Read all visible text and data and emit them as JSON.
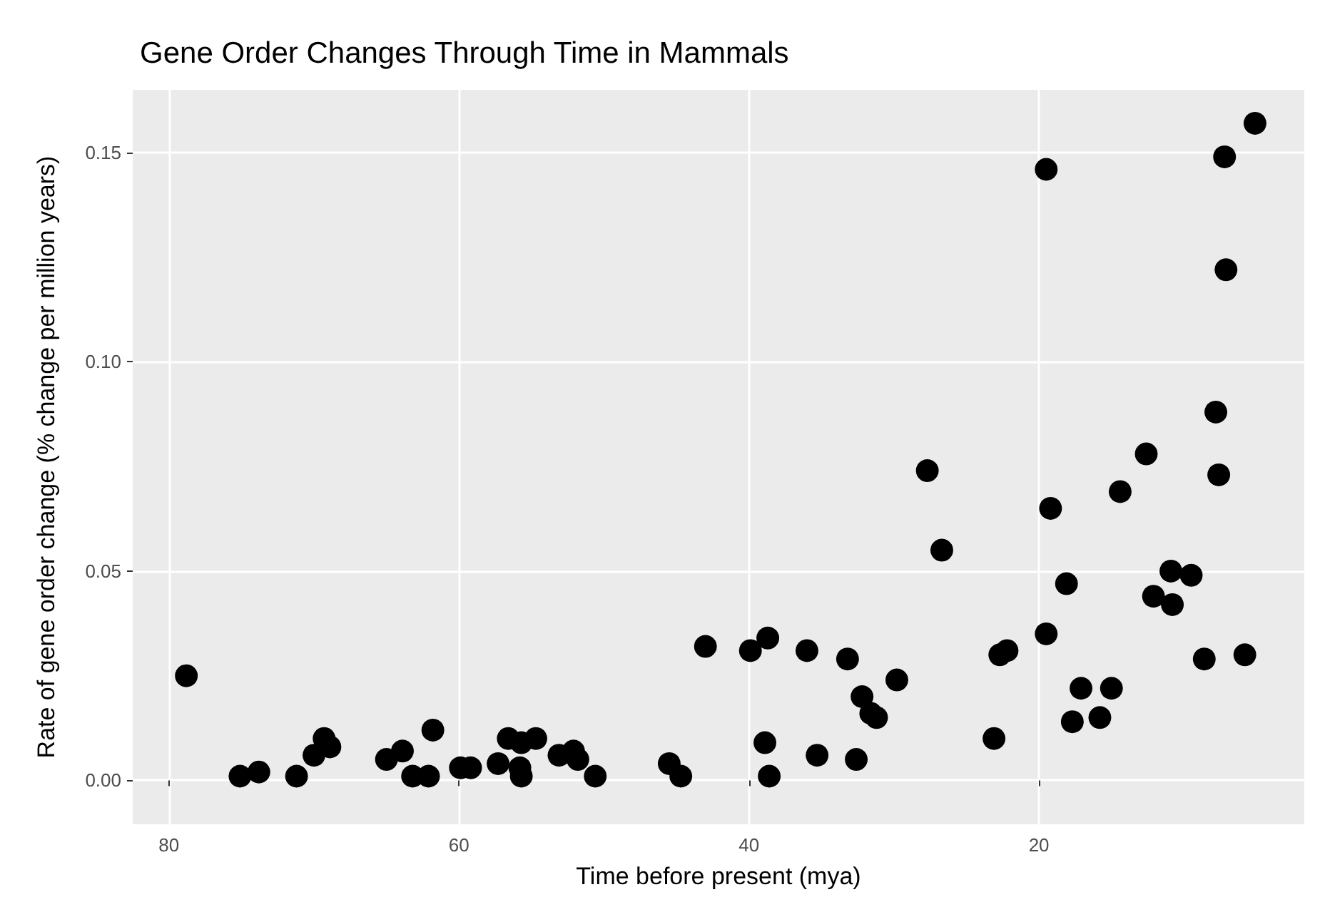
{
  "chart_data": {
    "type": "scatter",
    "title": "Gene Order Changes Through Time in Mammals",
    "xlabel": "Time before present (mya)",
    "ylabel": "Rate of gene order change (% change per million years)",
    "x": [
      78.8,
      75.1,
      73.8,
      71.2,
      70.0,
      69.3,
      68.9,
      65.0,
      63.9,
      63.2,
      62.1,
      61.8,
      59.9,
      59.2,
      57.3,
      56.6,
      55.7,
      54.7,
      55.8,
      55.7,
      53.1,
      52.1,
      51.8,
      50.6,
      45.5,
      44.7,
      43.0,
      39.9,
      38.7,
      38.9,
      38.6,
      36.0,
      35.3,
      33.2,
      32.6,
      32.2,
      31.6,
      31.2,
      29.8,
      27.7,
      26.7,
      23.1,
      22.7,
      22.2,
      19.5,
      19.5,
      19.2,
      18.1,
      17.7,
      17.1,
      15.8,
      15.0,
      14.4,
      12.6,
      12.1,
      10.9,
      10.8,
      9.5,
      8.6,
      7.8,
      7.6,
      7.2,
      7.1,
      5.8,
      5.1
    ],
    "series": [
      {
        "color": "#000000",
        "values": [
          0.025,
          0.001,
          0.002,
          0.001,
          0.006,
          0.01,
          0.008,
          0.005,
          0.007,
          0.001,
          0.001,
          0.012,
          0.003,
          0.003,
          0.004,
          0.01,
          0.009,
          0.01,
          0.003,
          0.001,
          0.006,
          0.007,
          0.005,
          0.001,
          0.004,
          0.001,
          0.032,
          0.031,
          0.034,
          0.009,
          0.001,
          0.031,
          0.006,
          0.029,
          0.005,
          0.02,
          0.016,
          0.015,
          0.024,
          0.074,
          0.055,
          0.01,
          0.03,
          0.031,
          0.146,
          0.035,
          0.065,
          0.047,
          0.014,
          0.022,
          0.015,
          0.022,
          0.069,
          0.078,
          0.044,
          0.05,
          0.042,
          0.049,
          0.029,
          0.088,
          0.073,
          0.149,
          0.122,
          0.03,
          0.157
        ]
      }
    ],
    "xlim": [
      82.5,
      1.7
    ],
    "xticks": [
      80,
      60,
      40,
      20
    ],
    "ylim": [
      -0.0105,
      0.165
    ],
    "yticks": [
      {
        "value": 0,
        "label": "0.00"
      },
      {
        "value": 0.05,
        "label": "0.05"
      },
      {
        "value": 0.1,
        "label": "0.10"
      },
      {
        "value": 0.15,
        "label": "0.15"
      }
    ],
    "grid": true,
    "marker": "circle"
  }
}
